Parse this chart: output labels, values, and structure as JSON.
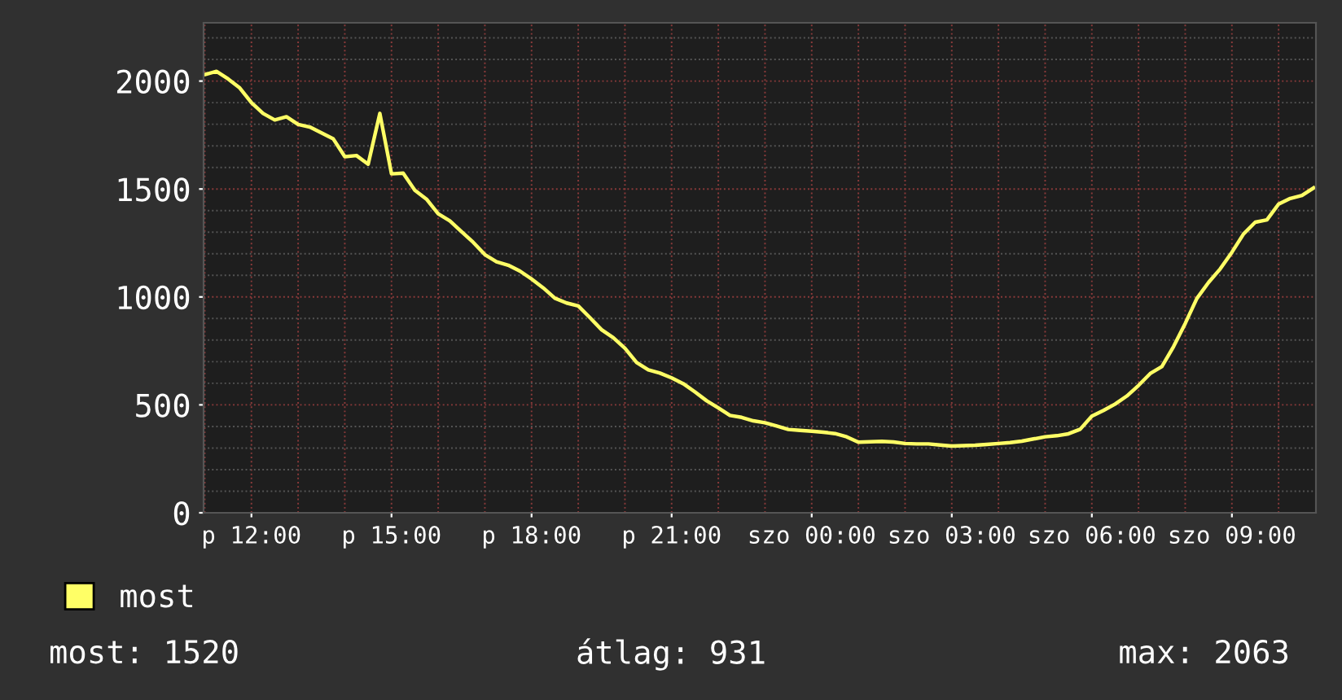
{
  "chart_data": {
    "type": "line",
    "categories": [
      null,
      null,
      null,
      null,
      "p 12:00",
      null,
      null,
      null,
      null,
      null,
      null,
      null,
      null,
      null,
      null,
      null,
      "p 15:00",
      null,
      null,
      null,
      null,
      null,
      null,
      null,
      null,
      null,
      null,
      null,
      "p 18:00",
      null,
      null,
      null,
      null,
      null,
      null,
      null,
      null,
      null,
      null,
      null,
      "p 21:00",
      null,
      null,
      null,
      null,
      null,
      null,
      null,
      null,
      null,
      null,
      null,
      "szo 00:00",
      null,
      null,
      null,
      null,
      null,
      null,
      null,
      null,
      null,
      null,
      null,
      "szo 03:00",
      null,
      null,
      null,
      null,
      null,
      null,
      null,
      null,
      null,
      null,
      null,
      "szo 06:00",
      null,
      null,
      null,
      null,
      null,
      null,
      null,
      null,
      null,
      null,
      null,
      "szo 09:00",
      null,
      null,
      null,
      null,
      null,
      null,
      null
    ],
    "series": [
      {
        "name": "most",
        "color": "#ffff66",
        "values": [
          2030,
          2045,
          2010,
          1968,
          1900,
          1850,
          1820,
          1835,
          1799,
          1787,
          1760,
          1733,
          1650,
          1655,
          1615,
          1850,
          1570,
          1573,
          1494,
          1453,
          1385,
          1352,
          1302,
          1253,
          1196,
          1163,
          1147,
          1120,
          1083,
          1042,
          994,
          972,
          958,
          904,
          848,
          811,
          762,
          696,
          662,
          647,
          625,
          598,
          560,
          519,
          486,
          451,
          442,
          426,
          417,
          402,
          386,
          382,
          378,
          373,
          367,
          352,
          327,
          329,
          331,
          328,
          321,
          319,
          319,
          314,
          309,
          311,
          313,
          317,
          321,
          325,
          332,
          342,
          352,
          357,
          366,
          387,
          448,
          474,
          504,
          541,
          590,
          645,
          677,
          770,
          877,
          993,
          1067,
          1130,
          1207,
          1292,
          1346,
          1357,
          1430,
          1456,
          1470,
          1505
        ]
      }
    ],
    "ylim": [
      0,
      2270
    ],
    "yticks": [
      0,
      500,
      1000,
      1500,
      2000
    ],
    "grid": true,
    "legend": "bottom left",
    "marker": "none",
    "line_style": "solid",
    "annotations": [
      "most: 1520",
      "átlag: 931",
      "max: 2063"
    ]
  }
}
